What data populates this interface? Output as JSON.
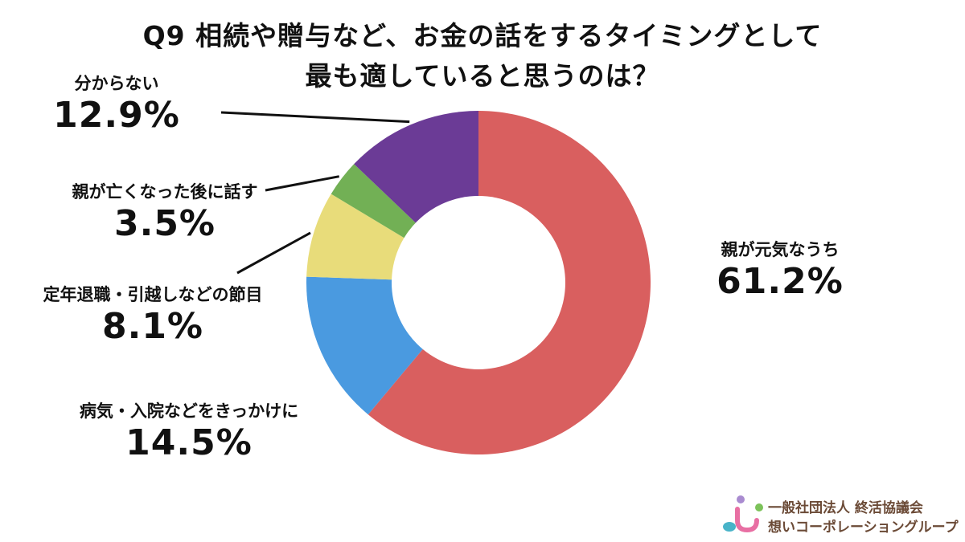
{
  "chart_data": {
    "type": "pie",
    "variant": "donut",
    "title_lines": [
      "Q9 相続や贈与など、お金の話をするタイミングとして",
      "最も適していると思うのは？"
    ],
    "slices": [
      {
        "label": "親が元気なうち",
        "value": 61.2,
        "value_text": "61.2%",
        "color": "#d95f5f"
      },
      {
        "label": "病気・入院などをきっかけに",
        "value": 14.5,
        "value_text": "14.5%",
        "color": "#4a9ae0"
      },
      {
        "label": "定年退職・引越しなどの節目",
        "value": 8.1,
        "value_text": "8.1%",
        "color": "#e8dc7a"
      },
      {
        "label": "親が亡くなった後に話す",
        "value": 3.5,
        "value_text": "3.5%",
        "color": "#72b055"
      },
      {
        "label": "分からない",
        "value": 12.9,
        "value_text": "12.9%",
        "color": "#6b3b96"
      }
    ],
    "start_angle": "12 o'clock",
    "direction": "clockwise",
    "legend": "none"
  },
  "logo": {
    "line1": "一般社団法人 終活協議会",
    "line2": "想いコーポレーショングループ"
  }
}
